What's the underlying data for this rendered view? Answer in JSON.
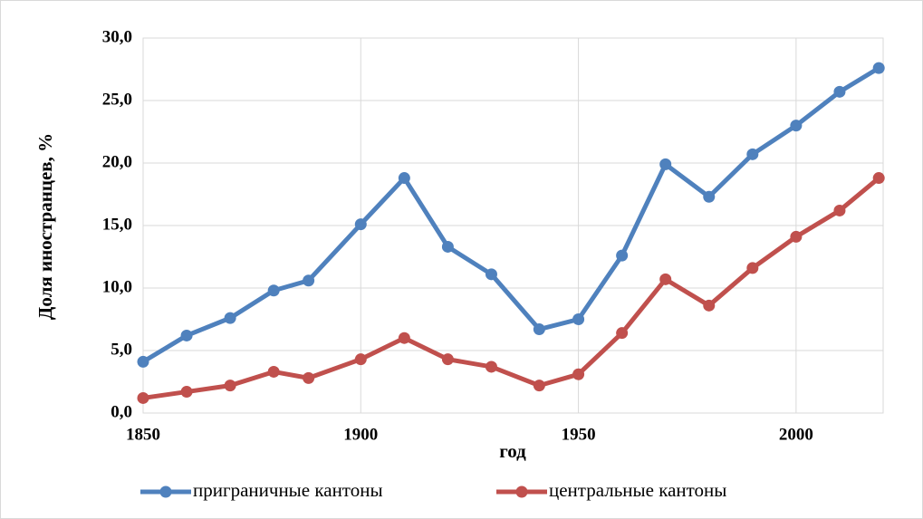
{
  "chart_data": {
    "type": "line",
    "x_label": "год",
    "y_label": "Доля иностранцев, %",
    "x": [
      1850,
      1860,
      1870,
      1880,
      1888,
      1900,
      1910,
      1920,
      1930,
      1941,
      1950,
      1960,
      1970,
      1980,
      1990,
      2000,
      2010,
      2019
    ],
    "series": [
      {
        "name": "приграничные кантоны",
        "color": "#4f81bd",
        "values": [
          4.1,
          6.2,
          7.6,
          9.8,
          10.6,
          15.1,
          18.8,
          13.3,
          11.1,
          6.7,
          7.5,
          12.6,
          19.9,
          17.3,
          20.7,
          23.0,
          25.7,
          27.6
        ]
      },
      {
        "name": "центральные кантоны",
        "color": "#c0504d",
        "values": [
          1.2,
          1.7,
          2.2,
          3.3,
          2.8,
          4.3,
          6.0,
          4.3,
          3.7,
          2.2,
          3.1,
          6.4,
          10.7,
          8.6,
          11.6,
          14.1,
          16.2,
          18.8
        ]
      }
    ],
    "xlim": [
      1850,
      2020
    ],
    "xticks": [
      1850,
      1900,
      1950,
      2000
    ],
    "ylim": [
      0,
      30
    ],
    "yticks": [
      {
        "value": 0,
        "label": "0,0"
      },
      {
        "value": 5,
        "label": "5,0"
      },
      {
        "value": 10,
        "label": "10,0"
      },
      {
        "value": 15,
        "label": "15,0"
      },
      {
        "value": 20,
        "label": "20,0"
      },
      {
        "value": 25,
        "label": "25,0"
      },
      {
        "value": 30,
        "label": "30,0"
      }
    ],
    "grid": true,
    "legend": "bottom"
  }
}
